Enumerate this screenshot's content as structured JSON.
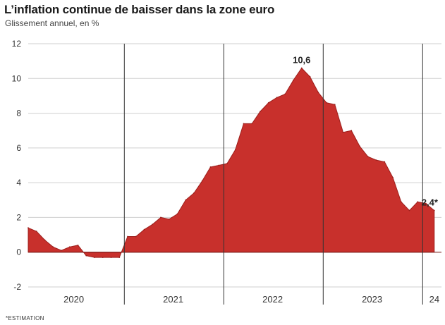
{
  "chart_data": {
    "type": "area",
    "title": "L’inflation continue de baisser dans la zone euro",
    "subtitle": "Glissement annuel, en %",
    "footnote": "*ESTIMATION",
    "ylim": [
      -2,
      12
    ],
    "y_ticks": [
      12,
      10,
      8,
      6,
      4,
      2,
      0,
      -2
    ],
    "x_groups": [
      "2020",
      "2021",
      "2022",
      "2023",
      "24"
    ],
    "fill_color": "#c8302c",
    "grid": true,
    "series": [
      {
        "x": [
          "2020-01",
          "2020-02",
          "2020-03",
          "2020-04",
          "2020-05",
          "2020-06",
          "2020-07",
          "2020-08",
          "2020-09",
          "2020-10",
          "2020-11",
          "2020-12",
          "2021-01",
          "2021-02",
          "2021-03",
          "2021-04",
          "2021-05",
          "2021-06",
          "2021-07",
          "2021-08",
          "2021-09",
          "2021-10",
          "2021-11",
          "2021-12",
          "2022-01",
          "2022-02",
          "2022-03",
          "2022-04",
          "2022-05",
          "2022-06",
          "2022-07",
          "2022-08",
          "2022-09",
          "2022-10",
          "2022-11",
          "2022-12",
          "2023-01",
          "2023-02",
          "2023-03",
          "2023-04",
          "2023-05",
          "2023-06",
          "2023-07",
          "2023-08",
          "2023-09",
          "2023-10",
          "2023-11",
          "2023-12",
          "2024-01",
          "2024-02"
        ],
        "values": [
          1.4,
          1.2,
          0.7,
          0.3,
          0.1,
          0.3,
          0.4,
          -0.2,
          -0.3,
          -0.3,
          -0.3,
          -0.3,
          0.9,
          0.9,
          1.3,
          1.6,
          2.0,
          1.9,
          2.2,
          3.0,
          3.4,
          4.1,
          4.9,
          5.0,
          5.1,
          5.9,
          7.4,
          7.4,
          8.1,
          8.6,
          8.9,
          9.1,
          9.9,
          10.6,
          10.1,
          9.2,
          8.6,
          8.5,
          6.9,
          7.0,
          6.1,
          5.5,
          5.3,
          5.2,
          4.3,
          2.9,
          2.4,
          2.9,
          2.8,
          2.4
        ]
      }
    ],
    "annotations": [
      {
        "label": "10,6",
        "x": "2022-10",
        "y": 10.6
      },
      {
        "label": "2,4*",
        "x": "2024-02",
        "y": 2.4
      }
    ]
  }
}
